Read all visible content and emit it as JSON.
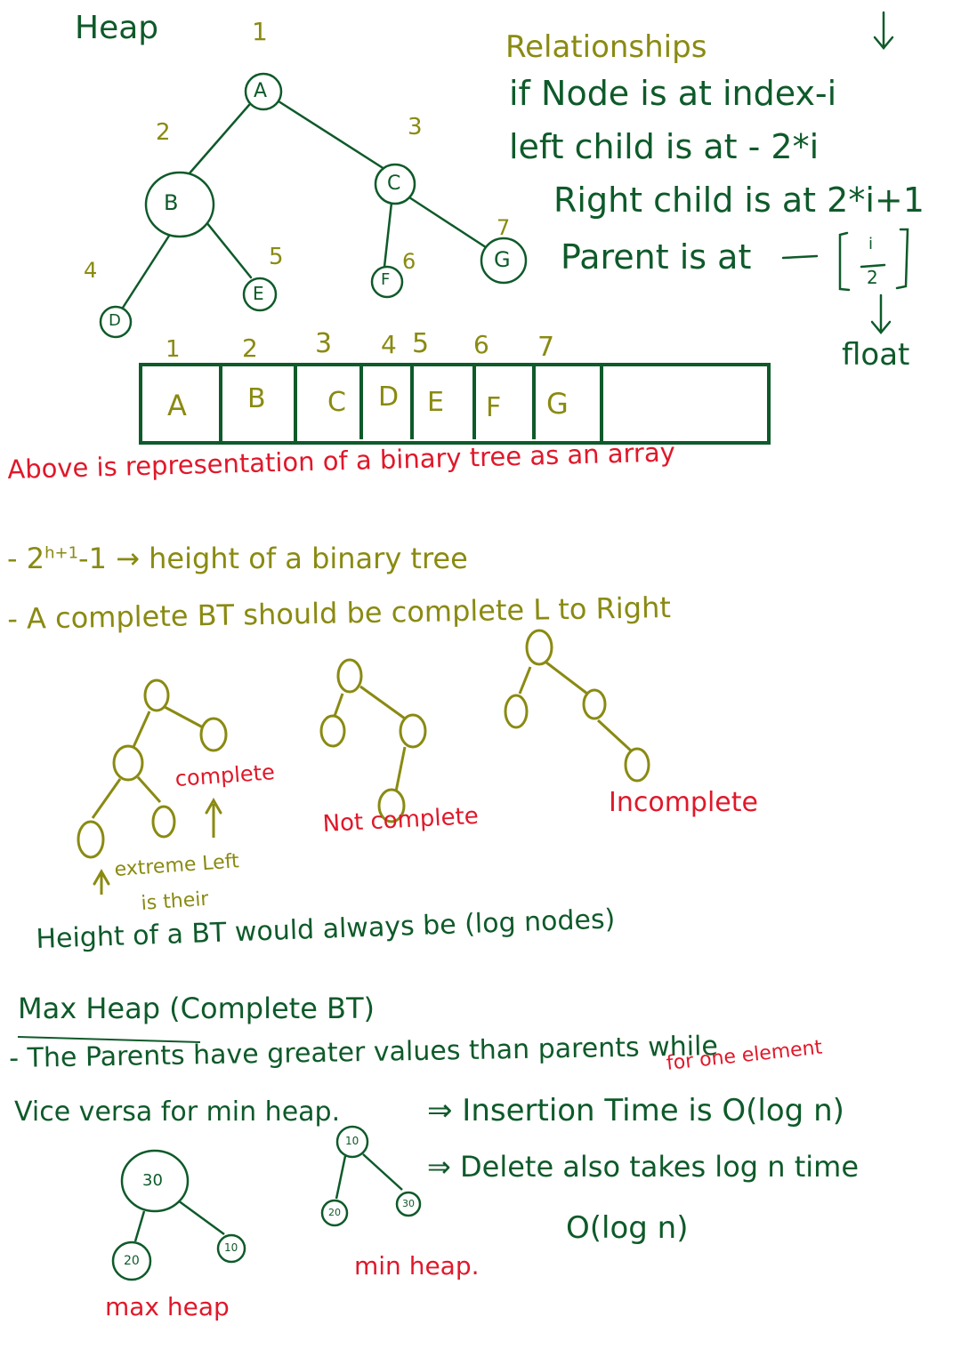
{
  "colors": {
    "green": "#0e5a2a",
    "olive": "#8a8a12",
    "red": "#e0182a"
  },
  "heap_title": "Heap",
  "tree": {
    "root_index": "1",
    "nodes": [
      "A",
      "B",
      "C",
      "D",
      "E",
      "F",
      "G"
    ],
    "indices": [
      "1",
      "2",
      "3",
      "4",
      "5",
      "6",
      "7"
    ]
  },
  "relationships": {
    "title": "Relationships",
    "line1": "if Node is at index-i",
    "line2": "left child is at - 2*i",
    "line3": "Right child is at 2*i+1",
    "line4": "Parent is at",
    "frac_num": "i",
    "frac_den": "2",
    "float_label": "float"
  },
  "array": {
    "indices": [
      "1",
      "2",
      "3",
      "4",
      "5",
      "6",
      "7"
    ],
    "cells": [
      "A",
      "B",
      "C",
      "D",
      "E",
      "F",
      "G"
    ]
  },
  "above_note": "Above is representation of a binary tree as an array",
  "height_line": {
    "prefix": "2",
    "sup": "h+1",
    "suffix": "-1 → height of a binary tree"
  },
  "complete_line": "- A complete BT should be complete L to Right",
  "examples": {
    "complete": "complete",
    "extreme_left": "extreme Left",
    "is_their": "is their",
    "not_complete": "Not complete",
    "incomplete": "Incomplete"
  },
  "height_log": "Height of a BT would always be (log nodes)",
  "max_heap": {
    "title": "Max Heap (Complete BT)",
    "line1": "- The Parents have greater values than parents while",
    "line2": "Vice versa for min heap.",
    "for_one": "for one element",
    "insertion": "⇒ Insertion Time is O(log n)",
    "delete": "⇒ Delete also takes log n time",
    "complexity": "O(log n)"
  },
  "max_tree": {
    "root": "30",
    "left": "20",
    "right": "10",
    "label": "max heap"
  },
  "min_tree": {
    "root": "10",
    "left": "20",
    "right": "30",
    "label": "min heap."
  }
}
